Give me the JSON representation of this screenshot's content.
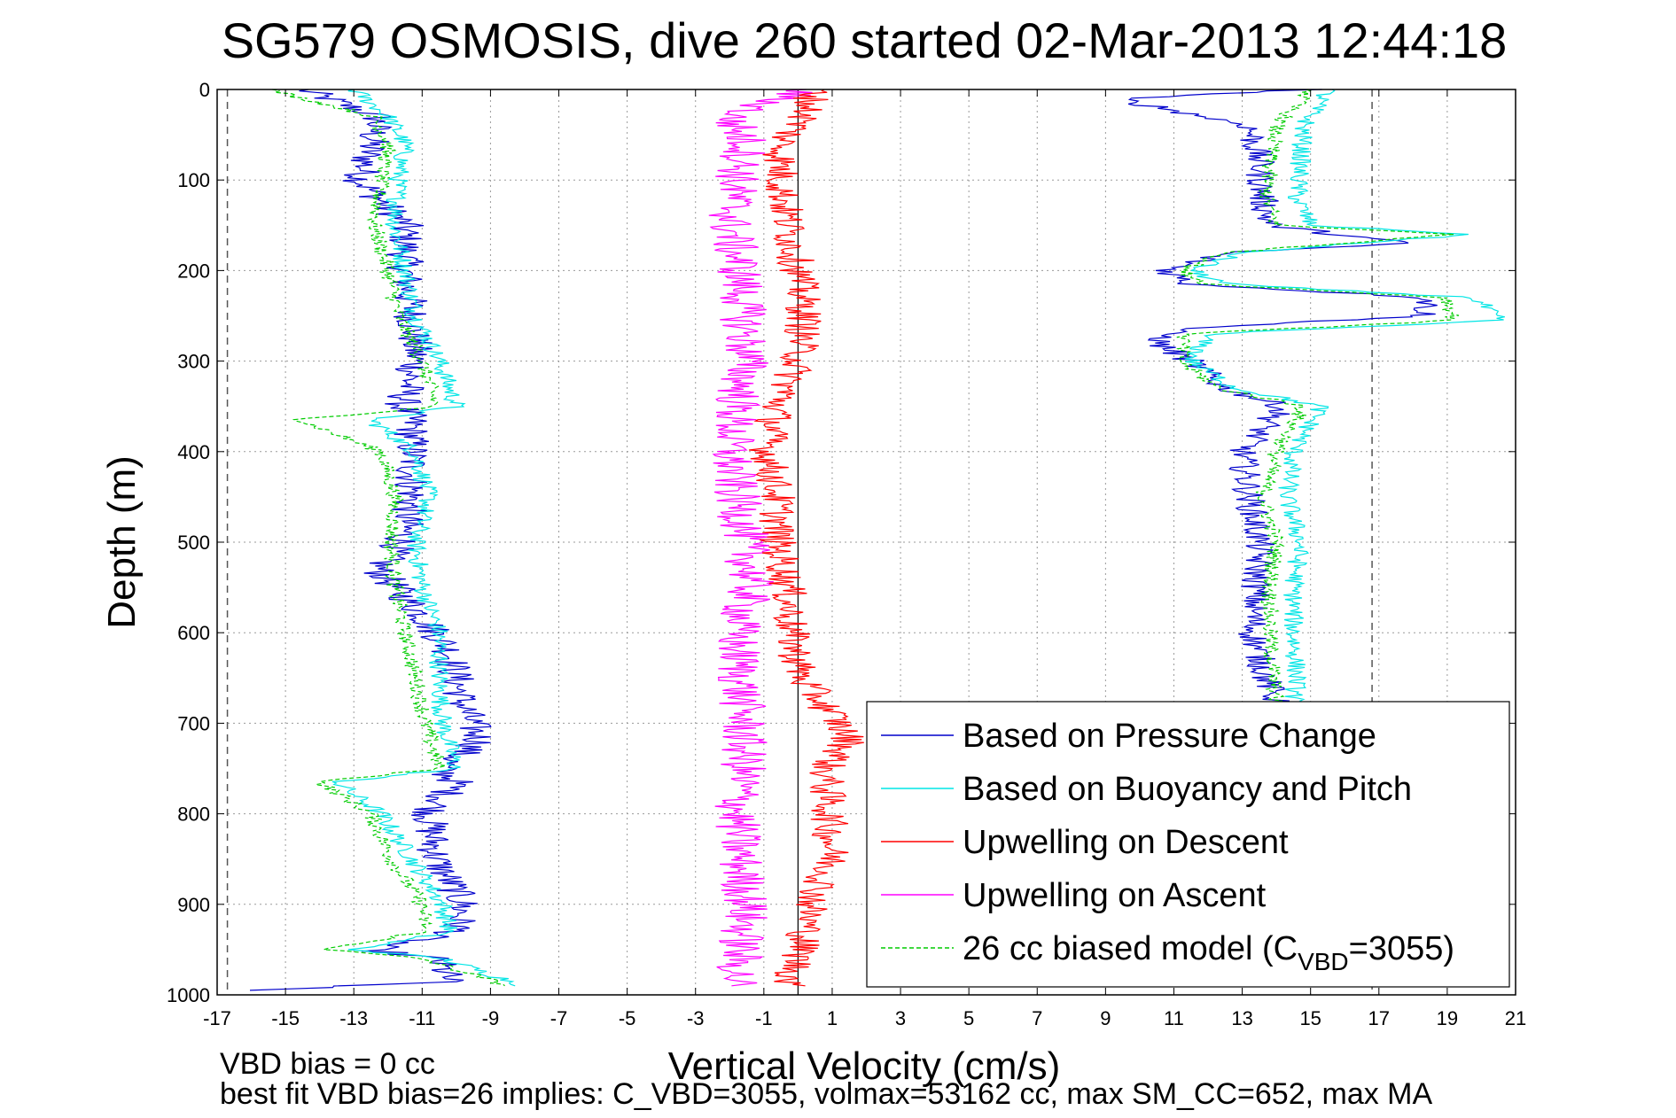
{
  "chart_data": {
    "type": "line",
    "title": "SG579 OSMOSIS, dive 260 started 02-Mar-2013 12:44:18",
    "xlabel": "Vertical Velocity (cm/s)",
    "ylabel": "Depth (m)",
    "xlim": [
      -17,
      21
    ],
    "ylim": [
      0,
      1000
    ],
    "y_reversed": true,
    "grid": true,
    "x_ticks": [
      "-17",
      "-15",
      "-13",
      "-11",
      "-9",
      "-7",
      "-5",
      "-3",
      "-1",
      "1",
      "3",
      "5",
      "7",
      "9",
      "11",
      "13",
      "15",
      "17",
      "19",
      "21"
    ],
    "y_ticks": [
      "0",
      "100",
      "200",
      "300",
      "400",
      "500",
      "600",
      "700",
      "800",
      "900",
      "1000"
    ],
    "reference_lines": {
      "zero_line_x": 0,
      "dashed_left_x": -16.7,
      "dashed_right_x": 16.8
    },
    "legend_placement": "bottom-right",
    "legend": [
      {
        "text": "Based on Pressure Change",
        "color": "#0000cc",
        "dash": "solid"
      },
      {
        "text": "Based on Buoyancy and Pitch",
        "color": "#00e5e5",
        "dash": "solid"
      },
      {
        "text": "Upwelling on Descent",
        "color": "#ff0000",
        "dash": "solid"
      },
      {
        "text": "Upwelling on Ascent",
        "color": "#ff00ff",
        "dash": "solid"
      },
      {
        "text_main": "26 cc biased model (C",
        "text_sub": "VBD",
        "text_end": "=3055)",
        "color": "#00cc00",
        "dash": "dashed"
      }
    ],
    "series": [
      {
        "name": "Based on Pressure Change (descent)",
        "color": "#0000cc",
        "depth": [
          0,
          30,
          60,
          100,
          150,
          200,
          250,
          300,
          350,
          365,
          400,
          450,
          500,
          530,
          580,
          620,
          680,
          720,
          750,
          765,
          800,
          850,
          900,
          930,
          950,
          960,
          985,
          995
        ],
        "velocity": [
          -14.5,
          -12.3,
          -12.5,
          -12.8,
          -11.5,
          -11.5,
          -11.3,
          -11.2,
          -11.6,
          -11.3,
          -11.3,
          -11.3,
          -11.6,
          -12.3,
          -11.0,
          -10.2,
          -9.8,
          -9.3,
          -10.5,
          -10.0,
          -10.8,
          -10.6,
          -9.8,
          -10.0,
          -12.6,
          -10.6,
          -10.2,
          -16.0
        ],
        "jitter": 0.55
      },
      {
        "name": "Based on Buoyancy and Pitch (descent)",
        "color": "#00e5e5",
        "depth": [
          0,
          30,
          60,
          100,
          150,
          200,
          250,
          300,
          350,
          365,
          400,
          450,
          500,
          550,
          600,
          650,
          700,
          750,
          765,
          800,
          850,
          900,
          930,
          950,
          960,
          990
        ],
        "velocity": [
          -13.0,
          -12.0,
          -11.5,
          -11.7,
          -11.8,
          -11.5,
          -11.2,
          -10.5,
          -10.0,
          -12.5,
          -11.2,
          -10.8,
          -11.2,
          -11.0,
          -10.5,
          -10.5,
          -10.4,
          -10.0,
          -13.5,
          -12.2,
          -11.3,
          -10.4,
          -10.2,
          -13.0,
          -10.4,
          -8.0
        ],
        "jitter": 0.3
      },
      {
        "name": "26 cc biased model (descent)",
        "color": "#00cc00",
        "dash": "dashed",
        "depth": [
          0,
          30,
          60,
          100,
          150,
          200,
          250,
          300,
          350,
          365,
          400,
          450,
          500,
          550,
          600,
          650,
          700,
          750,
          765,
          800,
          850,
          900,
          930,
          950,
          960,
          990
        ],
        "velocity": [
          -15.5,
          -12.4,
          -12.0,
          -12.2,
          -12.4,
          -12.0,
          -11.7,
          -11.0,
          -10.6,
          -14.6,
          -12.2,
          -11.8,
          -11.9,
          -11.8,
          -11.5,
          -11.2,
          -10.9,
          -10.5,
          -14.0,
          -12.5,
          -11.9,
          -11.0,
          -10.9,
          -13.8,
          -11.0,
          -8.5
        ],
        "jitter": 0.25
      },
      {
        "name": "Based on Pressure Change (ascent)",
        "color": "#0000cc",
        "depth": [
          0,
          10,
          40,
          80,
          120,
          150,
          170,
          180,
          200,
          215,
          230,
          250,
          265,
          280,
          300,
          330,
          350,
          400,
          450,
          500,
          550,
          600,
          650,
          680
        ],
        "velocity": [
          15.0,
          9.3,
          13.2,
          13.5,
          13.6,
          13.8,
          17.8,
          12.5,
          10.8,
          11.5,
          18.5,
          18.3,
          11.0,
          10.5,
          11.5,
          12.5,
          14.2,
          13.0,
          13.2,
          13.5,
          13.4,
          13.3,
          13.7,
          14.0
        ],
        "jitter": 0.45
      },
      {
        "name": "Based on Buoyancy and Pitch (ascent)",
        "color": "#00e5e5",
        "depth": [
          0,
          40,
          80,
          120,
          150,
          160,
          180,
          200,
          215,
          230,
          255,
          270,
          300,
          330,
          350,
          400,
          450,
          500,
          550,
          600,
          650,
          680
        ],
        "velocity": [
          15.5,
          14.8,
          14.7,
          14.6,
          15.0,
          19.7,
          13.0,
          11.5,
          12.5,
          19.8,
          20.5,
          12.0,
          11.5,
          12.8,
          15.3,
          14.5,
          14.3,
          14.7,
          14.5,
          14.5,
          14.6,
          14.5
        ],
        "jitter": 0.3
      },
      {
        "name": "26 cc biased model (ascent)",
        "color": "#00cc00",
        "dash": "dashed",
        "depth": [
          0,
          40,
          80,
          120,
          150,
          160,
          180,
          200,
          215,
          230,
          255,
          270,
          300,
          330,
          350,
          400,
          450,
          500,
          550,
          600,
          650,
          680
        ],
        "velocity": [
          15.0,
          14.0,
          13.8,
          13.7,
          14.0,
          19.2,
          12.6,
          11.2,
          12.0,
          19.0,
          19.2,
          11.3,
          11.2,
          12.3,
          14.8,
          14.0,
          13.6,
          14.0,
          13.8,
          13.8,
          13.9,
          14.0
        ],
        "jitter": 0.25
      },
      {
        "name": "Upwelling on Ascent",
        "color": "#ff00ff",
        "depth": [
          0,
          30,
          60,
          100,
          150,
          200,
          250,
          300,
          350,
          400,
          450,
          500,
          550,
          600,
          650,
          700,
          750,
          800,
          850,
          900,
          950,
          990
        ],
        "velocity": [
          0.2,
          -2.0,
          -1.5,
          -1.8,
          -2.0,
          -1.7,
          -1.6,
          -1.5,
          -1.8,
          -2.0,
          -1.8,
          -1.5,
          -1.4,
          -1.8,
          -1.7,
          -1.6,
          -1.6,
          -1.8,
          -1.7,
          -1.5,
          -1.7,
          -1.8
        ],
        "jitter": 0.7
      },
      {
        "name": "Upwelling on Descent",
        "color": "#ff0000",
        "depth": [
          0,
          30,
          60,
          100,
          150,
          200,
          250,
          300,
          350,
          400,
          450,
          500,
          550,
          600,
          650,
          700,
          720,
          750,
          800,
          850,
          900,
          950,
          990
        ],
        "velocity": [
          0.5,
          0.2,
          -0.5,
          -0.5,
          -0.3,
          0.0,
          0.2,
          0.0,
          -0.6,
          -0.9,
          -0.6,
          -0.6,
          -0.3,
          -0.2,
          0.1,
          1.2,
          1.5,
          0.8,
          0.9,
          1.0,
          0.4,
          0.1,
          -0.3
        ],
        "jitter": 0.55
      }
    ]
  },
  "footer": {
    "line1": "VBD bias = 0 cc",
    "line2": "best fit VBD bias=26 implies: C_VBD=3055, volmax=53162 cc, max SM_CC=652, max MA"
  }
}
